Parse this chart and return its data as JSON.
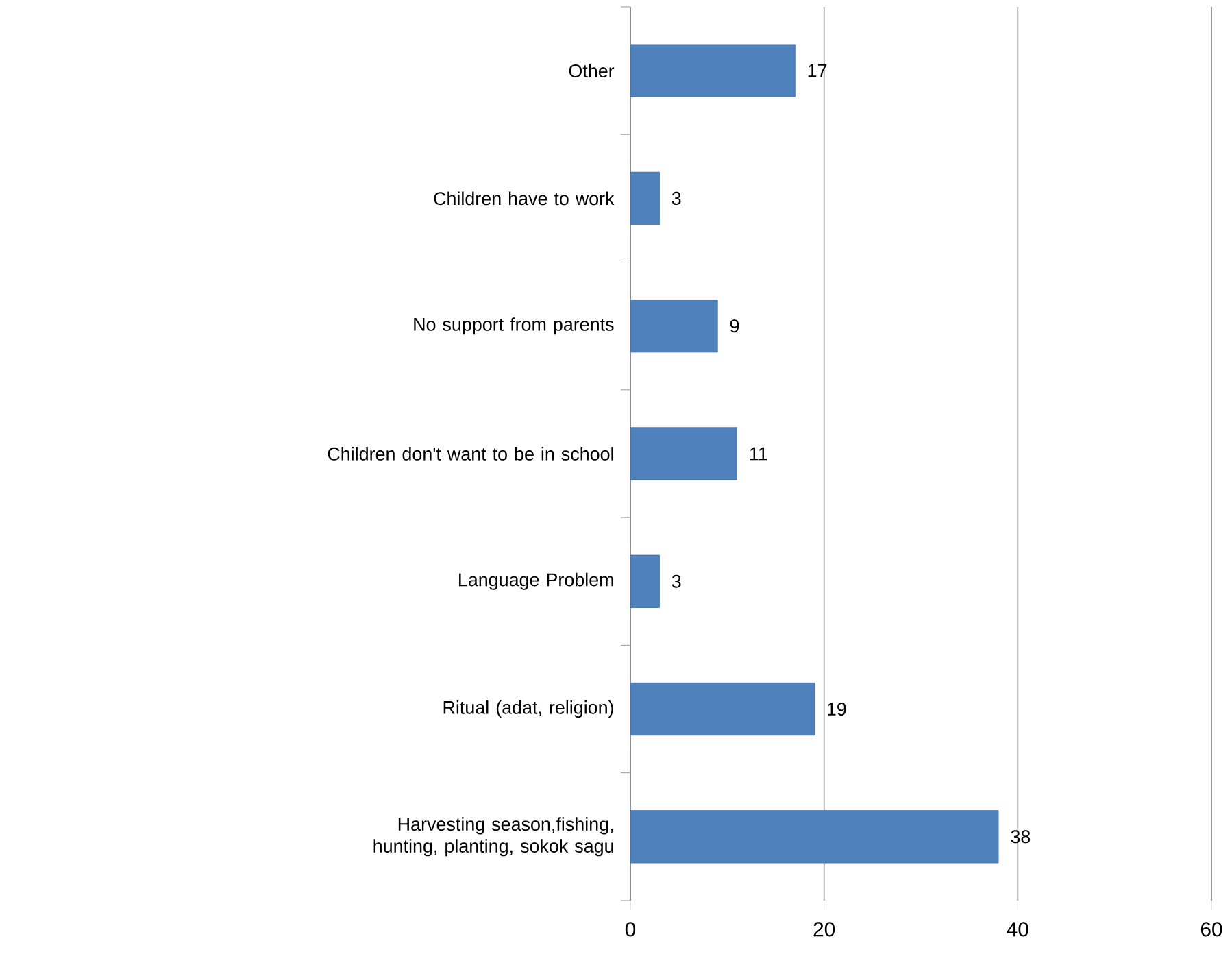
{
  "chart_data": {
    "type": "bar",
    "orientation": "horizontal",
    "categories": [
      "Other",
      "Children have to work",
      "No support from parents",
      "Children don't want to be in school",
      "Language Problem",
      "Ritual (adat, religion)",
      "Harvesting season,fishing, hunting, planting, sokok sagu"
    ],
    "values": [
      17,
      3,
      9,
      11,
      3,
      19,
      38
    ],
    "color": "#4f81bd",
    "xlim": [
      0,
      60
    ],
    "xticks": [
      0,
      20,
      40,
      60
    ],
    "grid": "x",
    "data_labels": true
  }
}
